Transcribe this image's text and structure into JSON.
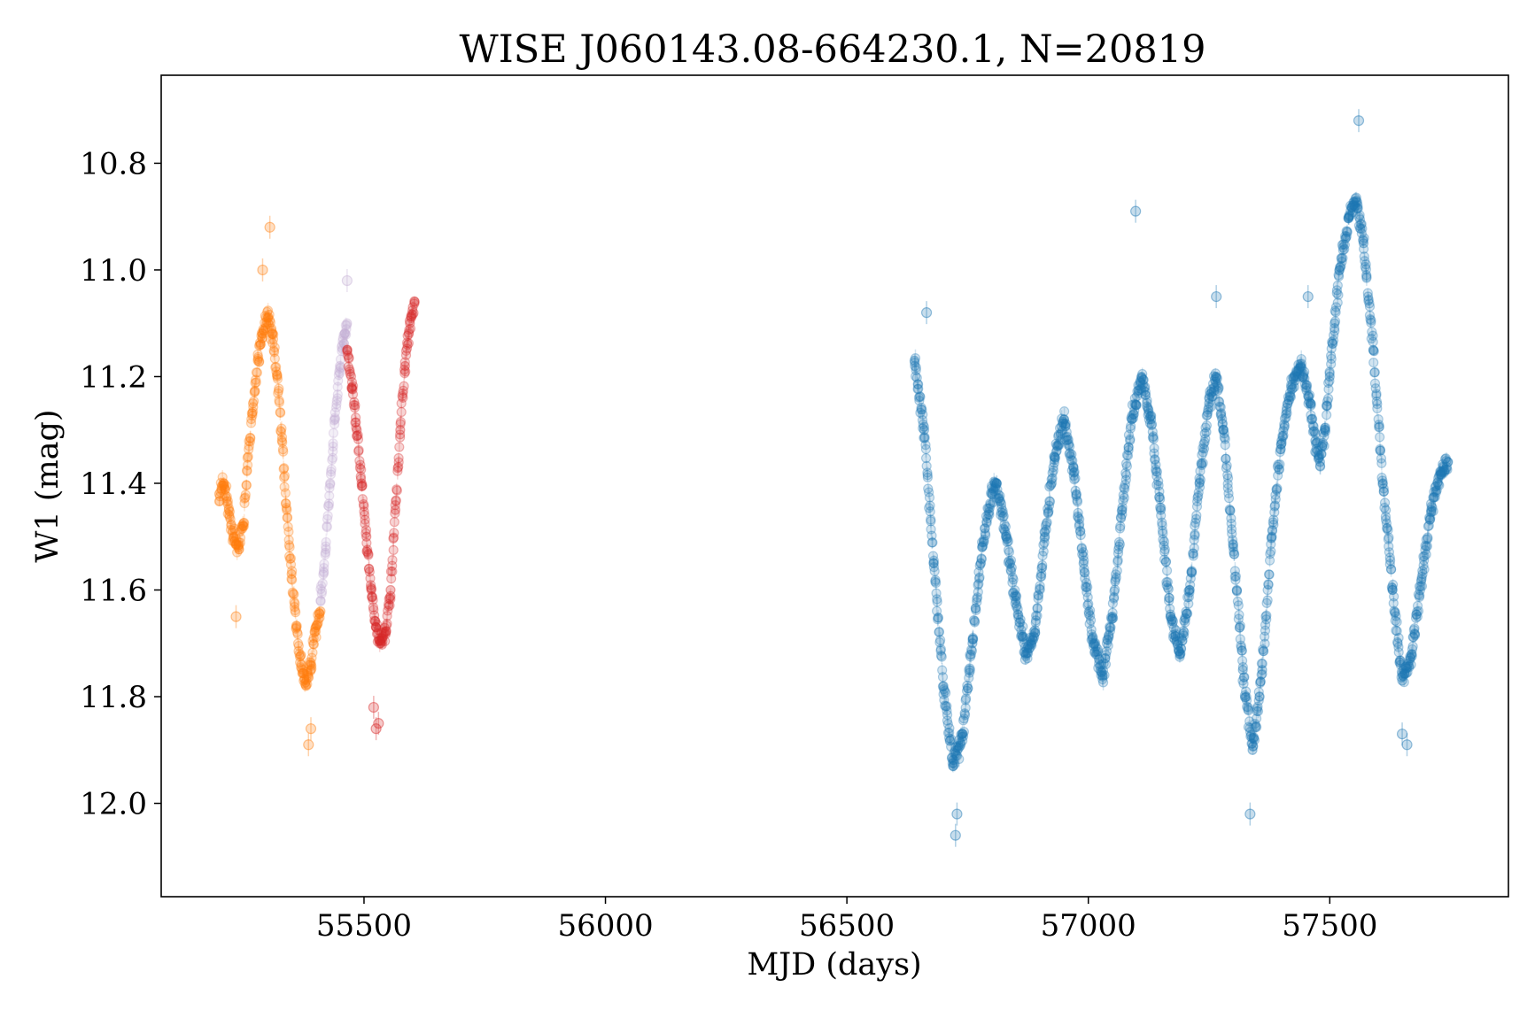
{
  "chart_data": {
    "type": "scatter",
    "title": "WISE J060143.08-664230.1, N=20819",
    "xlabel": "MJD (days)",
    "ylabel": "W1 (mag)",
    "xlim": [
      55080,
      57870
    ],
    "ylim": [
      12.175,
      10.635
    ],
    "y_inverted": true,
    "x_ticks": [
      55500,
      56000,
      56500,
      57000,
      57500
    ],
    "x_tick_labels": [
      "55500",
      "56000",
      "56500",
      "57000",
      "57500"
    ],
    "y_ticks": [
      10.8,
      11.0,
      11.2,
      11.4,
      11.6,
      11.8,
      12.0
    ],
    "y_tick_labels": [
      "10.8",
      "11.0",
      "11.2",
      "11.4",
      "11.6",
      "11.8",
      "12.0"
    ],
    "grid": false,
    "legend": "none",
    "marker": "circle with vertical error bar, alpha 0.2",
    "series": [
      {
        "color": "#ff7f0e",
        "points": [
          [
            55200,
            11.42
          ],
          [
            55210,
            11.4
          ],
          [
            55220,
            11.45
          ],
          [
            55230,
            11.5
          ],
          [
            55240,
            11.52
          ],
          [
            55250,
            11.48
          ],
          [
            55260,
            11.35
          ],
          [
            55270,
            11.25
          ],
          [
            55280,
            11.17
          ],
          [
            55290,
            11.12
          ],
          [
            55300,
            11.09
          ],
          [
            55310,
            11.12
          ],
          [
            55320,
            11.2
          ],
          [
            55330,
            11.32
          ],
          [
            55340,
            11.45
          ],
          [
            55350,
            11.57
          ],
          [
            55360,
            11.67
          ],
          [
            55370,
            11.74
          ],
          [
            55380,
            11.78
          ],
          [
            55390,
            11.74
          ],
          [
            55400,
            11.67
          ],
          [
            55410,
            11.64
          ]
        ],
        "outliers": [
          [
            55305,
            10.92
          ],
          [
            55290,
            11.0
          ],
          [
            55235,
            11.65
          ],
          [
            55385,
            11.89
          ],
          [
            55390,
            11.86
          ]
        ]
      },
      {
        "color": "#c5b0d5",
        "points": [
          [
            55410,
            11.62
          ],
          [
            55420,
            11.53
          ],
          [
            55430,
            11.4
          ],
          [
            55440,
            11.28
          ],
          [
            55450,
            11.18
          ],
          [
            55460,
            11.12
          ],
          [
            55465,
            11.1
          ]
        ],
        "outliers": [
          [
            55465,
            11.02
          ]
        ]
      },
      {
        "color": "#d62728",
        "points": [
          [
            55465,
            11.15
          ],
          [
            55475,
            11.22
          ],
          [
            55485,
            11.3
          ],
          [
            55495,
            11.4
          ],
          [
            55505,
            11.5
          ],
          [
            55515,
            11.6
          ],
          [
            55525,
            11.67
          ],
          [
            55535,
            11.7
          ],
          [
            55545,
            11.68
          ],
          [
            55555,
            11.6
          ],
          [
            55565,
            11.45
          ],
          [
            55575,
            11.3
          ],
          [
            55585,
            11.18
          ],
          [
            55595,
            11.1
          ],
          [
            55605,
            11.06
          ]
        ],
        "outliers": [
          [
            55525,
            11.86
          ],
          [
            55530,
            11.85
          ],
          [
            55520,
            11.82
          ]
        ]
      },
      {
        "color": "#1f77b4",
        "points": [
          [
            56640,
            11.17
          ],
          [
            56660,
            11.3
          ],
          [
            56680,
            11.55
          ],
          [
            56700,
            11.78
          ],
          [
            56720,
            11.93
          ],
          [
            56740,
            11.87
          ],
          [
            56760,
            11.7
          ],
          [
            56780,
            11.52
          ],
          [
            56800,
            11.42
          ],
          [
            56810,
            11.4
          ],
          [
            56830,
            11.5
          ],
          [
            56850,
            11.62
          ],
          [
            56870,
            11.72
          ],
          [
            56890,
            11.68
          ],
          [
            56910,
            11.5
          ],
          [
            56930,
            11.35
          ],
          [
            56950,
            11.28
          ],
          [
            56970,
            11.38
          ],
          [
            56990,
            11.55
          ],
          [
            57010,
            11.7
          ],
          [
            57030,
            11.76
          ],
          [
            57050,
            11.65
          ],
          [
            57070,
            11.45
          ],
          [
            57090,
            11.28
          ],
          [
            57110,
            11.2
          ],
          [
            57130,
            11.28
          ],
          [
            57150,
            11.45
          ],
          [
            57170,
            11.65
          ],
          [
            57190,
            11.72
          ],
          [
            57210,
            11.6
          ],
          [
            57230,
            11.4
          ],
          [
            57250,
            11.25
          ],
          [
            57265,
            11.2
          ],
          [
            57280,
            11.3
          ],
          [
            57300,
            11.52
          ],
          [
            57320,
            11.75
          ],
          [
            57340,
            11.9
          ],
          [
            57360,
            11.75
          ],
          [
            57380,
            11.5
          ],
          [
            57400,
            11.32
          ],
          [
            57420,
            11.22
          ],
          [
            57440,
            11.18
          ],
          [
            57460,
            11.25
          ],
          [
            57470,
            11.32
          ],
          [
            57480,
            11.36
          ],
          [
            57490,
            11.3
          ],
          [
            57500,
            11.2
          ],
          [
            57510,
            11.1
          ],
          [
            57520,
            11.0
          ],
          [
            57540,
            10.9
          ],
          [
            57555,
            10.87
          ],
          [
            57570,
            10.95
          ],
          [
            57590,
            11.15
          ],
          [
            57610,
            11.4
          ],
          [
            57630,
            11.6
          ],
          [
            57650,
            11.77
          ],
          [
            57670,
            11.72
          ],
          [
            57690,
            11.58
          ],
          [
            57710,
            11.45
          ],
          [
            57730,
            11.38
          ],
          [
            57745,
            11.36
          ]
        ],
        "outliers": [
          [
            57560,
            10.72
          ],
          [
            57098,
            10.89
          ],
          [
            56665,
            11.08
          ],
          [
            56725,
            12.06
          ],
          [
            56728,
            12.02
          ],
          [
            57335,
            12.02
          ],
          [
            57265,
            11.05
          ],
          [
            57455,
            11.05
          ],
          [
            57650,
            11.87
          ],
          [
            57660,
            11.89
          ]
        ]
      }
    ]
  }
}
